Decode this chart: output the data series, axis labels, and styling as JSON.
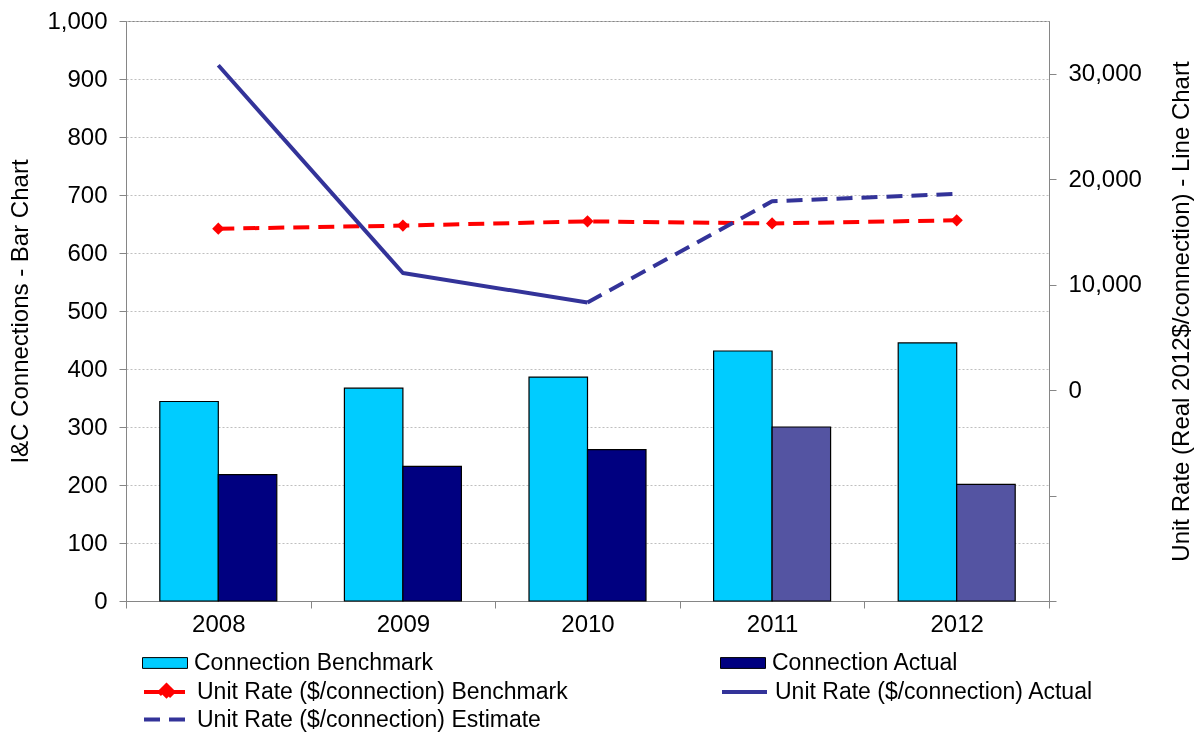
{
  "chart_data": {
    "type": "bar",
    "ylabel": "I&C Connections - Bar Chart",
    "y2label": "Unit Rate (Real 2012$/connection) - Line Chart",
    "categories": [
      "2008",
      "2009",
      "2010",
      "2011",
      "2012"
    ],
    "series": [
      {
        "name": "Connection Benchmark",
        "color": "#00ccff",
        "values": [
          344,
          367,
          386,
          431,
          445
        ]
      },
      {
        "name": "Connection Actual",
        "color": "#000080",
        "colors": [
          "#000080",
          "#000080",
          "#000080",
          "#5454a2",
          "#5454a2"
        ],
        "values": [
          218,
          232,
          261,
          300,
          201
        ]
      },
      {
        "name": "Unit Rate ($/connection) Benchmark",
        "type": "line",
        "axis": "y2",
        "color": "#ff0000",
        "marker": "diamond",
        "line_style": "dashed",
        "values": [
          15300,
          15600,
          16000,
          15800,
          16100
        ]
      },
      {
        "name": "Unit Rate ($/connection) Actual",
        "type": "line",
        "axis": "y2",
        "color": "#333399",
        "line_style": "solid",
        "values": [
          30800,
          11100,
          8300,
          null,
          null
        ]
      },
      {
        "name": "Unit Rate ($/connection) Estimate",
        "type": "line",
        "axis": "y2",
        "color": "#333399",
        "line_style": "dashed",
        "values": [
          null,
          null,
          8300,
          17900,
          18600
        ]
      }
    ],
    "ylim": [
      0,
      1000
    ],
    "yticks": [
      0,
      100,
      200,
      300,
      400,
      500,
      600,
      700,
      800,
      900,
      {
        "value": 1000,
        "label": "1,000"
      }
    ],
    "y2lim": [
      -20000,
      35000
    ],
    "y2ticks": [
      {
        "value": -20000,
        "label": null
      },
      {
        "value": -10000,
        "label": null
      },
      0,
      {
        "value": 10000,
        "label": "10,000"
      },
      {
        "value": 20000,
        "label": "20,000"
      },
      {
        "value": 30000,
        "label": "30,000"
      }
    ],
    "grid": "y",
    "legend": "bottom"
  }
}
